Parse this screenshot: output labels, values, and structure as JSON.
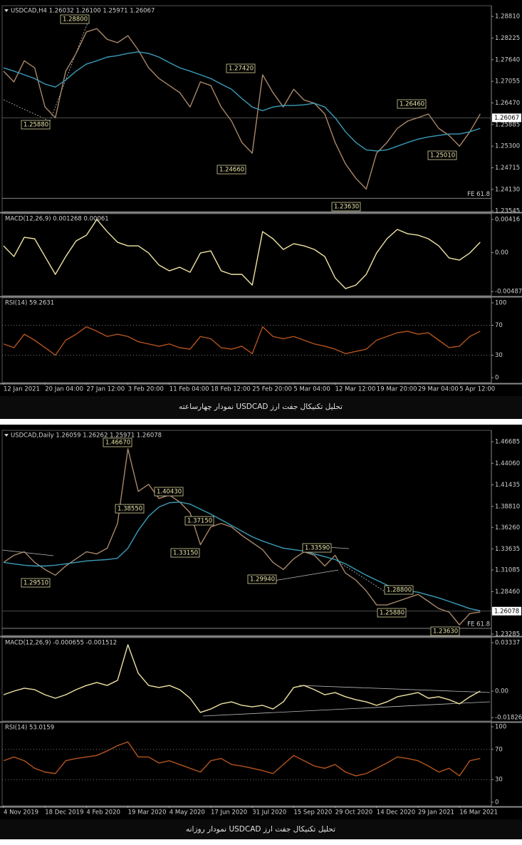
{
  "captions": [
    "تحلیل تکنیکال جفت ارز USDCAD نمودار چهارساعته",
    "تحلیل تکنیکال جفت ارز USDCAD نمودار روزانه"
  ],
  "chart_data": [
    {
      "type": "line",
      "title": "USDCAD,H4 1.26032 1.26100 1.25971 1.26067",
      "ylim": [
        1.2353,
        1.291
      ],
      "yticks": [
        {
          "value": 1.2881,
          "label": "1.28810"
        },
        1.28225,
        {
          "value": 1.2764,
          "label": "1.27640"
        },
        1.27055,
        {
          "value": 1.2647,
          "label": "1.26470"
        },
        1.25885,
        {
          "value": 1.253,
          "label": "1.25300"
        },
        1.24715,
        {
          "value": 1.2413,
          "label": "1.24130"
        },
        1.23545
      ],
      "last_price": 1.26067,
      "fe_level": {
        "label": "FE 61.8",
        "value": 1.2389
      },
      "annotations": [
        "1.28800",
        "1.25880",
        "1.27420",
        "1.24660",
        "1.23630",
        "1.26460",
        "1.25010"
      ],
      "series": [
        {
          "color": "#a8876a",
          "values": [
            1.2733,
            1.2704,
            1.2761,
            1.2742,
            1.2636,
            1.2607,
            1.2733,
            1.2781,
            1.2839,
            1.2848,
            1.2819,
            1.281,
            1.2829,
            1.279,
            1.2742,
            1.2713,
            1.2694,
            1.2675,
            1.2636,
            1.2704,
            1.2694,
            1.2636,
            1.2598,
            1.254,
            1.2511,
            1.2723,
            1.2675,
            1.2636,
            1.2684,
            1.2655,
            1.2646,
            1.2617,
            1.254,
            1.2482,
            1.2443,
            1.2414,
            1.2511,
            1.254,
            1.2578,
            1.2598,
            1.2607,
            1.2617,
            1.2578,
            1.2559,
            1.253,
            1.2569,
            1.2617
          ]
        },
        {
          "color": "#3a9cb8",
          "values": [
            1.2742,
            1.2733,
            1.2723,
            1.2713,
            1.2698,
            1.269,
            1.2709,
            1.2733,
            1.2752,
            1.2761,
            1.2771,
            1.2775,
            1.2781,
            1.2785,
            1.2781,
            1.2771,
            1.2756,
            1.2742,
            1.2733,
            1.2723,
            1.2713,
            1.2698,
            1.2684,
            1.2659,
            1.2636,
            1.2626,
            1.2636,
            1.264,
            1.264,
            1.2642,
            1.2646,
            1.2636,
            1.2607,
            1.2569,
            1.254,
            1.252,
            1.2517,
            1.252,
            1.253,
            1.254,
            1.2549,
            1.2555,
            1.2559,
            1.2563,
            1.2563,
            1.2569,
            1.2578
          ]
        }
      ]
    },
    {
      "type": "line",
      "title": "MACD(12,26,9) 0.001268 0.00061",
      "ylim": [
        -0.0054,
        0.00488
      ],
      "yticks": [
        0.00416,
        {
          "value": 0,
          "label": "0.00"
        },
        -0.004871
      ],
      "color": "#efe4a2",
      "values": [
        0.00085,
        -0.00049,
        0.00192,
        0.00174,
        -0.00049,
        -0.00273,
        -0.00049,
        0.00147,
        0.00219,
        0.00416,
        0.00264,
        0.0013,
        0.00085,
        0.00085,
        -4e-05,
        -0.00156,
        -0.00228,
        -0.00183,
        -0.00246,
        -4e-05,
        0.00022,
        -0.00228,
        -0.00273,
        -0.00273,
        -0.00407,
        0.00264,
        0.00174,
        0.0004,
        0.00112,
        0.00085,
        0.0004,
        -0.00049,
        -0.00317,
        -0.00451,
        -0.00407,
        -0.00273,
        -4e-05,
        0.00174,
        0.00291,
        0.00237,
        0.00219,
        0.00174,
        0.00085,
        -0.00067,
        -0.00094,
        -4e-05,
        0.0013
      ]
    },
    {
      "type": "line",
      "title": "RSI(14) 59.2631",
      "ylim": [
        -6.7,
        106.7
      ],
      "yticks": [
        100,
        70,
        30,
        0
      ],
      "levels": [
        70,
        30
      ],
      "color": "#b4541e",
      "categories": [
        "12 Jan 2021",
        null,
        null,
        null,
        "20 Jan 04:00",
        null,
        null,
        null,
        "27 Jan 12:00",
        null,
        null,
        null,
        "3 Feb 20:00",
        null,
        null,
        null,
        "11 Feb 04:00",
        null,
        null,
        null,
        "18 Feb 12:00",
        null,
        null,
        null,
        "25 Feb 20:00",
        null,
        null,
        null,
        "5 Mar 04:00",
        null,
        null,
        null,
        "12 Mar 12:00",
        null,
        null,
        null,
        "19 Mar 20:00",
        null,
        null,
        null,
        "29 Mar 04:00",
        null,
        null,
        null,
        "5 Apr 12:00",
        null,
        null
      ],
      "values": [
        45,
        40,
        58,
        50,
        40,
        30,
        50,
        58,
        68,
        62,
        55,
        58,
        55,
        48,
        45,
        42,
        45,
        40,
        38,
        55,
        52,
        40,
        38,
        42,
        32,
        68,
        55,
        52,
        55,
        50,
        45,
        42,
        38,
        32,
        35,
        38,
        50,
        55,
        60,
        62,
        58,
        60,
        50,
        40,
        42,
        55,
        62
      ]
    },
    {
      "type": "line",
      "title": "USDCAD,Daily 1.26059 1.26262 1.25971 1.26078",
      "ylim": [
        1.2311,
        1.4807
      ],
      "yticks": [
        1.46685,
        {
          "value": 1.4406,
          "label": "1.44060"
        },
        1.41435,
        {
          "value": 1.3881,
          "label": "1.38810"
        },
        {
          "value": 1.3626,
          "label": "1.36260"
        },
        1.33635,
        1.31085,
        {
          "value": 1.2846,
          "label": "1.28460"
        },
        1.23285
      ],
      "last_price": 1.26078,
      "fe_level": {
        "label": "FE 61.8",
        "value": 1.2398
      },
      "annotations": [
        "1.46670",
        "1.38550",
        "1.40430",
        "1.37150",
        "1.33150",
        "1.29510",
        "1.29940",
        "1.33590",
        "1.28800",
        "1.25880",
        "1.23630"
      ],
      "series": [
        {
          "color": "#a8876a",
          "values": [
            1.3201,
            1.3287,
            1.333,
            1.3201,
            1.3114,
            1.3045,
            1.3157,
            1.3244,
            1.333,
            1.3304,
            1.3373,
            1.3675,
            1.4582,
            1.4064,
            1.415,
            1.3978,
            1.4021,
            1.3935,
            1.3805,
            1.3416,
            1.3632,
            1.3675,
            1.3632,
            1.3529,
            1.3442,
            1.3356,
            1.3201,
            1.3114,
            1.3244,
            1.333,
            1.3287,
            1.3157,
            1.3287,
            1.3071,
            1.2985,
            1.2855,
            1.2683,
            1.2683,
            1.2726,
            1.2769,
            1.2812,
            1.2726,
            1.2639,
            1.2596,
            1.2441,
            1.2579,
            1.2596
          ]
        },
        {
          "color": "#3a9cb8",
          "values": [
            1.3201,
            1.3183,
            1.3166,
            1.3157,
            1.3157,
            1.3166,
            1.3183,
            1.3201,
            1.3218,
            1.3227,
            1.3235,
            1.3252,
            1.3373,
            1.3589,
            1.3762,
            1.3874,
            1.3926,
            1.3935,
            1.3909,
            1.3848,
            1.3788,
            1.3719,
            1.365,
            1.3581,
            1.3511,
            1.346,
            1.3416,
            1.3373,
            1.3356,
            1.3339,
            1.3304,
            1.327,
            1.3235,
            1.3183,
            1.3114,
            1.3045,
            1.2985,
            1.2924,
            1.2881,
            1.2855,
            1.2838,
            1.2803,
            1.2769,
            1.2726,
            1.2683,
            1.2639,
            1.2613
          ]
        }
      ]
    },
    {
      "type": "line",
      "title": "MACD(12,26,9) -0.000655 -0.001512",
      "ylim": [
        -0.0206,
        0.0368
      ],
      "yticks": [
        0.03337,
        {
          "value": 0,
          "label": "0.00"
        },
        -0.018262
      ],
      "color": "#efe4a2",
      "values": [
        -0.0025,
        0,
        0.002,
        0.001,
        -0.0025,
        -0.0049,
        -0.0025,
        0.001,
        0.0039,
        0.0059,
        0.0039,
        0.0074,
        0.0319,
        0.0123,
        0.0039,
        0.0025,
        0.0039,
        0.001,
        -0.0049,
        -0.0147,
        -0.0123,
        -0.0088,
        -0.0074,
        -0.0098,
        -0.0108,
        -0.0098,
        -0.0123,
        -0.0074,
        0.0025,
        0.0039,
        0.001,
        -0.0025,
        -0.001,
        -0.0039,
        -0.0059,
        -0.0074,
        -0.0098,
        -0.0074,
        -0.0039,
        -0.0025,
        -0.001,
        -0.0049,
        -0.0039,
        -0.0059,
        -0.0088,
        -0.0039,
        0
      ]
    },
    {
      "type": "line",
      "title": "RSI(14) 53.0159",
      "ylim": [
        -4.7,
        105.7
      ],
      "yticks": [
        100,
        70,
        30,
        0
      ],
      "levels": [
        70,
        30
      ],
      "color": "#b4541e",
      "categories": [
        "4 Nov 2019",
        null,
        null,
        null,
        "18 Dec 2019",
        null,
        null,
        null,
        "4 Feb 2020",
        null,
        null,
        null,
        "19 Mar 2020",
        null,
        null,
        null,
        "4 May 2020",
        null,
        null,
        null,
        "17 Jun 2020",
        null,
        null,
        null,
        "31 Jul 2020",
        null,
        null,
        null,
        "15 Sep 2020",
        null,
        null,
        null,
        "29 Oct 2020",
        null,
        null,
        null,
        "14 Dec 2020",
        null,
        null,
        null,
        "29 Jan 2021",
        null,
        null,
        null,
        "16 Mar 2021",
        null,
        null
      ],
      "values": [
        55,
        60,
        55,
        45,
        40,
        38,
        55,
        58,
        60,
        62,
        68,
        75,
        80,
        60,
        60,
        52,
        55,
        50,
        45,
        40,
        55,
        58,
        50,
        48,
        45,
        42,
        38,
        50,
        62,
        55,
        48,
        45,
        50,
        40,
        35,
        38,
        45,
        52,
        60,
        58,
        55,
        48,
        40,
        45,
        35,
        55,
        58
      ]
    }
  ]
}
